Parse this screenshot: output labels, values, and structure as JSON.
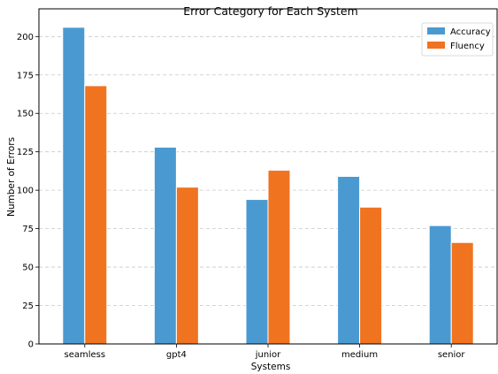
{
  "chart_data": {
    "type": "bar",
    "title": "Error Category for Each System",
    "xlabel": "Systems",
    "ylabel": "Number of Errors",
    "categories": [
      "seamless",
      "gpt4",
      "junior",
      "medium",
      "senior"
    ],
    "series": [
      {
        "name": "Accuracy",
        "color": "#4a9ad1",
        "values": [
          206,
          128,
          94,
          109,
          77
        ]
      },
      {
        "name": "Fluency",
        "color": "#f07320",
        "values": [
          168,
          102,
          113,
          89,
          66
        ]
      }
    ],
    "ylim": [
      0,
      218
    ],
    "yticks": [
      0,
      25,
      50,
      75,
      100,
      125,
      150,
      175,
      200
    ],
    "grid": "y-dashed",
    "legend_position": "top-right"
  }
}
